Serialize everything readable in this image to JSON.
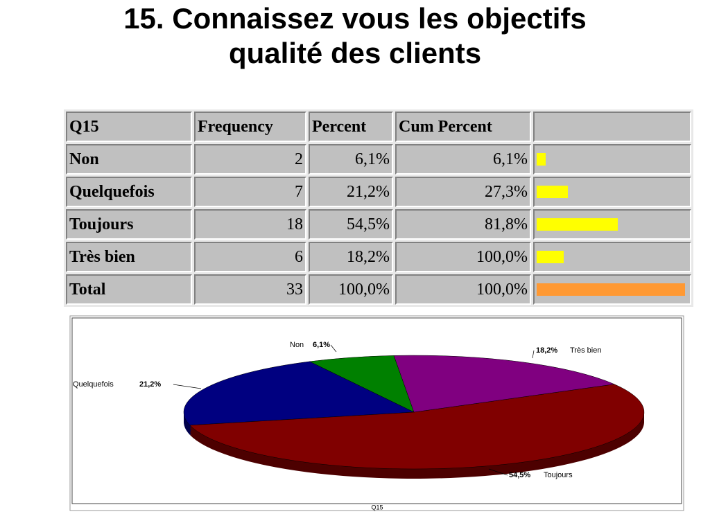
{
  "title": "15. Connaissez vous les objectifs qualité des clients",
  "table": {
    "header": [
      "Q15",
      "Frequency",
      "Percent",
      "Cum Percent"
    ],
    "rows": [
      {
        "label": "Non",
        "frequency": 2,
        "percent": "6,1%",
        "cum_percent": "6,1%"
      },
      {
        "label": "Quelquefois",
        "frequency": 7,
        "percent": "21,2%",
        "cum_percent": "27,3%"
      },
      {
        "label": "Toujours",
        "frequency": 18,
        "percent": "54,5%",
        "cum_percent": "81,8%"
      },
      {
        "label": "Très bien",
        "frequency": 6,
        "percent": "18,2%",
        "cum_percent": "100,0%"
      },
      {
        "label": "Total",
        "frequency": 33,
        "percent": "100,0%",
        "cum_percent": "100,0%"
      }
    ],
    "bar_color": "#ffff00",
    "total_bar_color": "#ff9933"
  },
  "chart_data": {
    "type": "pie",
    "xlabel": "Q15",
    "categories": [
      "Non",
      "Quelquefois",
      "Toujours",
      "Très bien"
    ],
    "values": [
      6.1,
      21.2,
      54.5,
      18.2
    ],
    "value_labels": [
      "6,1%",
      "21,2%",
      "54,5%",
      "18,2%"
    ],
    "colors": [
      "#008000",
      "#000080",
      "#800000",
      "#800080"
    ]
  }
}
